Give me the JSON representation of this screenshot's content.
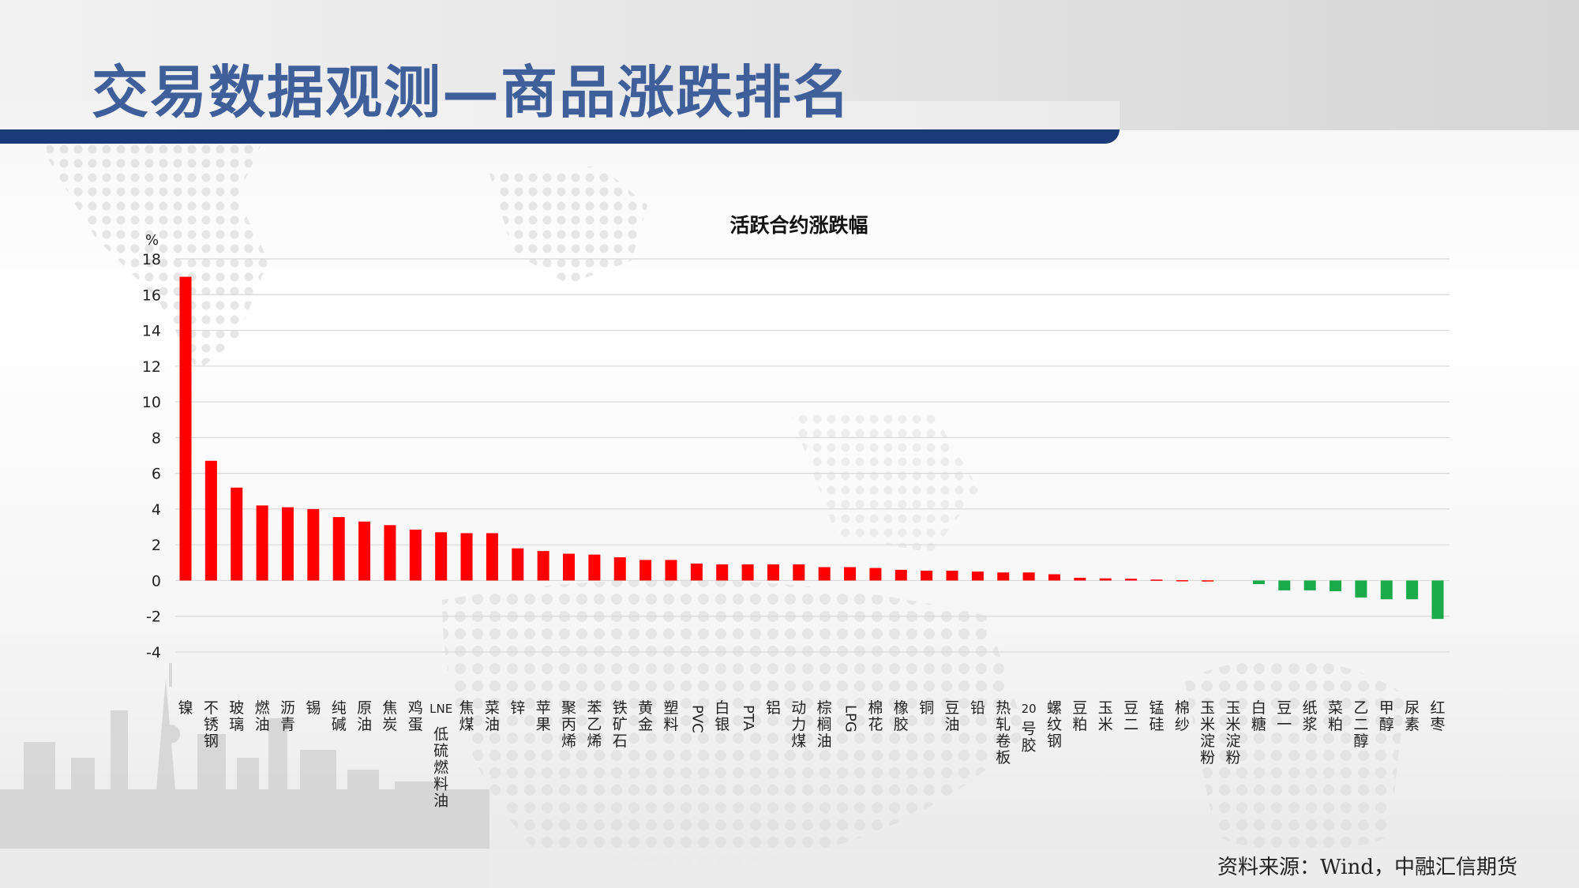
{
  "page": {
    "title": "交易数据观测—商品涨跌排名",
    "source": "资料来源：Wind，中融汇信期货",
    "accent_color": "#1a3a78",
    "title_color": "#3f5f9a"
  },
  "chart_data": {
    "type": "bar",
    "title": "活跃合约涨跌幅",
    "ylabel": "%",
    "xlabel": "",
    "ylim": [
      -4,
      18
    ],
    "yticks": [
      18,
      16,
      14,
      12,
      10,
      8,
      6,
      4,
      2,
      0,
      -2,
      -4
    ],
    "grid": true,
    "positive_color": "#ff0000",
    "negative_color": "#1aaa4a",
    "categories": [
      "镍",
      "不锈钢",
      "玻璃",
      "燃油",
      "沥青",
      "锡",
      "纯碱",
      "原油",
      "焦炭",
      "鸡蛋",
      "LNE低硫燃料油",
      "焦煤",
      "菜油",
      "锌",
      "苹果",
      "聚丙烯",
      "苯乙烯",
      "铁矿石",
      "黄金",
      "塑料",
      "PVC",
      "白银",
      "PTA",
      "铝",
      "动力煤",
      "棕榈油",
      "LPG",
      "棉花",
      "橡胶",
      "铜",
      "豆油",
      "铅",
      "热轧卷板",
      "20号胶",
      "螺纹钢",
      "豆粕",
      "玉米",
      "豆二",
      "锰硅",
      "棉纱",
      "玉米淀粉",
      "玉米淀粉",
      "白糖",
      "豆一",
      "纸浆",
      "菜粕",
      "乙二醇",
      "甲醇",
      "尿素",
      "红枣"
    ],
    "values": [
      17.0,
      6.7,
      5.2,
      4.2,
      4.1,
      4.0,
      3.55,
      3.3,
      3.1,
      2.85,
      2.7,
      2.65,
      2.65,
      1.8,
      1.65,
      1.5,
      1.45,
      1.3,
      1.15,
      1.15,
      0.95,
      0.9,
      0.9,
      0.9,
      0.9,
      0.75,
      0.75,
      0.7,
      0.6,
      0.55,
      0.55,
      0.5,
      0.45,
      0.45,
      0.35,
      0.15,
      0.12,
      0.1,
      0.05,
      0.02,
      0.01,
      0.0,
      -0.2,
      -0.55,
      -0.55,
      -0.6,
      -0.95,
      -1.05,
      -1.05,
      -2.15
    ]
  }
}
